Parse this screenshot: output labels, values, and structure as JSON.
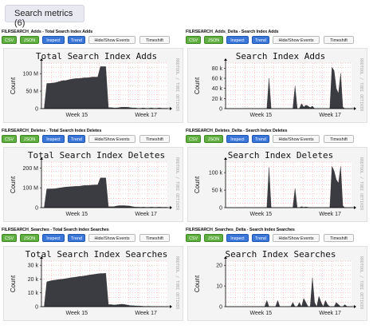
{
  "header": {
    "label": "Search metrics (6)"
  },
  "buttons": {
    "csv": "CSV",
    "json": "JSON",
    "inspect": "Inspect",
    "trend": "Trend",
    "hide": "Hide/Show Events",
    "timeshift": "Timeshift"
  },
  "watermark": "RRDTOOL / TOBI OETIKER",
  "colors": {
    "area": "#3b3b42",
    "csv": "#5fae3f",
    "inspect": "#3a76d8",
    "grid": "#ff9999"
  },
  "panels": [
    {
      "title": "FILRSEARCH_Adds - Total Search Index Adds",
      "chart_title": "Total Search Index Adds",
      "ylabel": "Count",
      "xticks": [
        "Week 15",
        "Week 17"
      ]
    },
    {
      "title": "FILRSEARCH_Adds_Delta - Search Index Adds",
      "chart_title": "Search Index Adds",
      "ylabel": "Count",
      "xticks": [
        "Week 15",
        "Week 17"
      ]
    },
    {
      "title": "FILRSEARCH_Deletes - Total Search Index Deletes",
      "chart_title": "Total Search Index Deletes",
      "ylabel": "Count",
      "xticks": [
        "Week 15",
        "Week 17"
      ]
    },
    {
      "title": "FILRSEARCH_Deletes_Delta - Search Index Deletes",
      "chart_title": "Search Index Deletes",
      "ylabel": "Count",
      "xticks": [
        "Week 15",
        "Week 17"
      ]
    },
    {
      "title": "FILRSEARCH_Searches - Total Search Index Searches",
      "chart_title": "Total Search Index Searches",
      "ylabel": "Count",
      "xticks": [
        "Week 15",
        "Week 17"
      ]
    },
    {
      "title": "FILRSEARCH_Searches_Delta - Search Index Searches",
      "chart_title": "Search Index Searches",
      "ylabel": "Count",
      "xticks": [
        "Week 15",
        "Week 17"
      ]
    }
  ],
  "chart_data": [
    {
      "type": "area",
      "title": "Total Search Index Adds",
      "ylabel": "Count",
      "x_labels": [
        "Week 15",
        "Week 17"
      ],
      "yticks": [
        {
          "v": 0,
          "label": "0"
        },
        {
          "v": 50000000,
          "label": "50 M"
        },
        {
          "v": 100000000,
          "label": "100 M"
        }
      ],
      "ylim": [
        0,
        130000000
      ],
      "values": [
        0,
        0,
        72000000,
        72000000,
        73000000,
        74000000,
        76000000,
        78000000,
        80000000,
        80000000,
        82000000,
        84000000,
        85000000,
        86000000,
        86000000,
        87000000,
        88000000,
        88000000,
        89000000,
        90000000,
        90000000,
        90000000,
        120000000,
        120000000,
        120000000,
        3000000,
        3000000,
        2000000,
        2000000,
        3000000,
        4000000,
        4000000,
        4000000,
        3000000,
        2000000,
        2000000,
        1000000,
        1000000,
        2000000,
        1000000,
        1000000,
        2000000,
        1000000,
        1000000,
        2000000,
        1000000,
        1000000,
        1000000
      ]
    },
    {
      "type": "area",
      "title": "Search Index Adds",
      "ylabel": "Count",
      "x_labels": [
        "Week 15",
        "Week 17"
      ],
      "yticks": [
        {
          "v": 0,
          "label": "0"
        },
        {
          "v": 20000,
          "label": "20 k"
        },
        {
          "v": 40000,
          "label": "40 k"
        },
        {
          "v": 60000,
          "label": "60 k"
        },
        {
          "v": 80000,
          "label": "80 k"
        }
      ],
      "ylim": [
        0,
        90000
      ],
      "values": [
        0,
        0,
        0,
        0,
        0,
        0,
        0,
        0,
        0,
        300,
        200,
        100,
        0,
        0,
        0,
        0,
        0,
        0,
        0,
        0,
        60000,
        0,
        0,
        0,
        0,
        0,
        0,
        0,
        0,
        0,
        0,
        0,
        45000,
        0,
        0,
        10000,
        3000,
        7000,
        5000,
        2000,
        5000,
        0,
        0,
        0,
        0,
        0,
        0,
        0,
        0,
        82000,
        75000,
        40000,
        30000,
        70000,
        3000,
        0,
        0,
        0,
        0
      ]
    },
    {
      "type": "area",
      "title": "Total Search Index Deletes",
      "ylabel": "Count",
      "x_labels": [
        "Week 15",
        "Week 17"
      ],
      "yticks": [
        {
          "v": 0,
          "label": "0"
        },
        {
          "v": 100000000,
          "label": "100 M"
        },
        {
          "v": 200000000,
          "label": "200 M"
        }
      ],
      "ylim": [
        0,
        230000000
      ],
      "values": [
        0,
        0,
        95000000,
        95000000,
        95000000,
        96000000,
        98000000,
        100000000,
        102000000,
        104000000,
        105000000,
        106000000,
        107000000,
        108000000,
        108000000,
        110000000,
        112000000,
        112000000,
        113000000,
        114000000,
        115000000,
        115000000,
        150000000,
        150000000,
        150000000,
        5000000,
        5000000,
        5000000,
        8000000,
        10000000,
        10000000,
        10000000,
        9000000,
        8000000,
        5000000,
        3000000,
        3000000,
        2000000,
        3000000,
        2000000,
        2000000,
        3000000,
        2000000,
        2000000,
        3000000,
        2000000,
        2000000,
        2000000
      ]
    },
    {
      "type": "area",
      "title": "Search Index Deletes",
      "ylabel": "Count",
      "x_labels": [
        "Week 15",
        "Week 17"
      ],
      "yticks": [
        {
          "v": 0,
          "label": "0"
        },
        {
          "v": 50000,
          "label": "50 k"
        },
        {
          "v": 100000,
          "label": "100 k"
        }
      ],
      "ylim": [
        0,
        130000
      ],
      "values": [
        0,
        0,
        0,
        0,
        0,
        0,
        0,
        0,
        0,
        500,
        300,
        100,
        0,
        0,
        0,
        0,
        0,
        0,
        0,
        0,
        115000,
        0,
        0,
        0,
        0,
        0,
        0,
        0,
        0,
        0,
        0,
        0,
        55000,
        0,
        0,
        3000,
        1000,
        2000,
        1000,
        0,
        0,
        0,
        0,
        0,
        0,
        0,
        0,
        0,
        0,
        118000,
        105000,
        80000,
        70000,
        118000,
        5000,
        0,
        0,
        0,
        0
      ]
    },
    {
      "type": "area",
      "title": "Total Search Index Searches",
      "ylabel": "Count",
      "x_labels": [
        "Week 15",
        "Week 17"
      ],
      "yticks": [
        {
          "v": 0,
          "label": "0"
        },
        {
          "v": 10000,
          "label": "10 k"
        },
        {
          "v": 20000,
          "label": "20 k"
        },
        {
          "v": 30000,
          "label": "30 k"
        }
      ],
      "ylim": [
        0,
        33000
      ],
      "values": [
        0,
        0,
        18000,
        18500,
        19000,
        19200,
        19500,
        19800,
        20000,
        20300,
        20600,
        21000,
        21200,
        21500,
        21800,
        22000,
        22300,
        22600,
        23000,
        23200,
        23500,
        23800,
        24000,
        24000,
        24200,
        1500,
        1500,
        1200,
        1400,
        1600,
        1800,
        1600,
        1200,
        800,
        700,
        600,
        500,
        400,
        300,
        200,
        300,
        200,
        100,
        100,
        100,
        100,
        0,
        0
      ]
    },
    {
      "type": "area",
      "title": "Search Index Searches",
      "ylabel": "Count",
      "x_labels": [
        "Week 15",
        "Week 17"
      ],
      "yticks": [
        {
          "v": 0,
          "label": "0"
        },
        {
          "v": 10,
          "label": "10"
        },
        {
          "v": 20,
          "label": "20"
        }
      ],
      "ylim": [
        0,
        22
      ],
      "values": [
        0,
        0,
        0,
        0,
        0,
        0,
        0,
        0,
        0,
        0,
        0,
        0,
        0,
        0,
        0,
        0,
        0,
        0,
        0,
        3,
        0,
        0,
        0,
        0,
        3,
        0,
        0,
        0,
        0,
        0,
        0,
        2,
        0,
        0,
        2,
        0,
        4,
        2,
        0,
        0,
        14,
        2,
        0,
        5,
        2,
        0,
        3,
        1,
        0,
        0,
        0,
        2,
        1,
        0,
        0,
        1,
        0,
        0,
        0
      ]
    }
  ]
}
